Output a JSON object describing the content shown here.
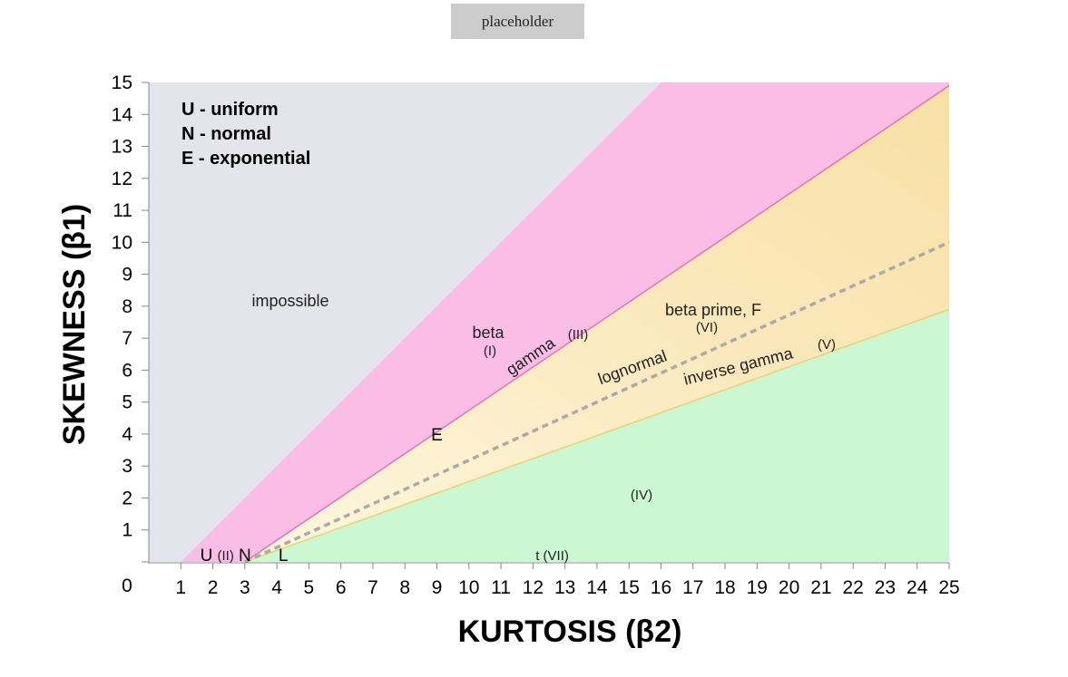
{
  "button": {
    "label": "placeholder"
  },
  "chart_data": {
    "type": "area",
    "xlabel": "KURTOSIS (β2)",
    "ylabel": "SKEWNESS (β1)",
    "xlim": [
      0,
      25
    ],
    "ylim": [
      0,
      15
    ],
    "x_ticks": [
      "1",
      "2",
      "3",
      "4",
      "5",
      "6",
      "7",
      "8",
      "9",
      "10",
      "11",
      "12",
      "13",
      "14",
      "15",
      "16",
      "17",
      "18",
      "19",
      "20",
      "21",
      "22",
      "23",
      "24",
      "25"
    ],
    "y_ticks": [
      "0",
      "1",
      "2",
      "3",
      "4",
      "5",
      "6",
      "7",
      "8",
      "9",
      "10",
      "11",
      "12",
      "13",
      "14",
      "15"
    ],
    "legend": [
      "U - uniform",
      "N - normal",
      "E - exponential"
    ],
    "regions": [
      {
        "label": "impossible",
        "color": "#e4e4ec",
        "boundary": [
          [
            1,
            0
          ],
          [
            16,
            15
          ]
        ]
      },
      {
        "label": "beta",
        "sublabel": "(I)",
        "color": "#f9bde6"
      },
      {
        "label": "beta prime, F",
        "sublabel": "(VI)",
        "color": "#fbe6b0"
      },
      {
        "label": "(IV)",
        "color": "#ccf7d3"
      }
    ],
    "lines": [
      {
        "label": "gamma",
        "sublabel": "(III)",
        "color": "#e873b8",
        "points": [
          [
            3,
            0
          ],
          [
            25,
            14.9
          ]
        ]
      },
      {
        "label": "lognormal",
        "color": "#aaaaaa",
        "dashed": true,
        "points": [
          [
            3,
            0
          ],
          [
            25,
            10
          ]
        ]
      },
      {
        "label": "inverse gamma",
        "sublabel": "(V)",
        "color": "#f0d070",
        "points": [
          [
            3,
            0
          ],
          [
            25,
            7.9
          ]
        ]
      }
    ],
    "points": [
      {
        "label": "U",
        "x": 1.8,
        "y": 0
      },
      {
        "label": "(II)",
        "x": 2.4,
        "y": 0
      },
      {
        "label": "N",
        "x": 3,
        "y": 0
      },
      {
        "label": "L",
        "x": 4.2,
        "y": 0
      },
      {
        "label": "E",
        "x": 9,
        "y": 4
      },
      {
        "label": "t (VII)",
        "x": 12.6,
        "y": 0
      }
    ]
  }
}
